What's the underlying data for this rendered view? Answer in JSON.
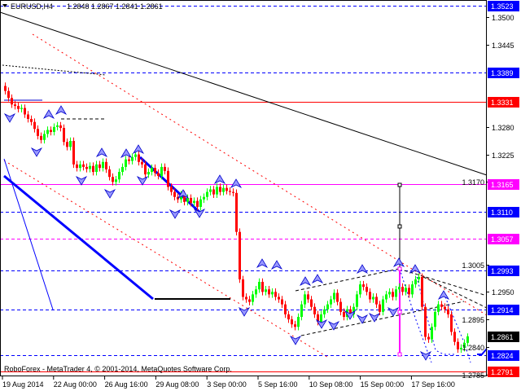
{
  "header": {
    "symbol_timeframe": "EURUSD,H4",
    "ohlc": "1.2848 1.2867 1.2841 1.2861"
  },
  "footer": {
    "copyright": "RoboForex - MetaTrader 4, © 2001-2014, MetaQuotes Software Corp."
  },
  "colors": {
    "bull": "#00ff00",
    "bear": "#ff0000",
    "blue_level": "#0000ff",
    "red_level": "#ff0000",
    "magenta_level": "#ff00ff",
    "current_price": "#000000"
  },
  "chart_data": {
    "type": "candlestick",
    "title": "EURUSD,H4",
    "timeframe": "H4",
    "ylim": [
      1.2781,
      1.3534
    ],
    "grid": false,
    "closes": [
      1.3352,
      1.3338,
      1.3325,
      1.3322,
      1.3316,
      1.3318,
      1.3305,
      1.3296,
      1.329,
      1.3276,
      1.3262,
      1.3254,
      1.3266,
      1.3274,
      1.327,
      1.328,
      1.3283,
      1.3278,
      1.325,
      1.324,
      1.3252,
      1.3205,
      1.3198,
      1.3205,
      1.32,
      1.3196,
      1.3202,
      1.319,
      1.3205,
      1.3198,
      1.321,
      1.3195,
      1.318,
      1.317,
      1.3175,
      1.319,
      1.32,
      1.3215,
      1.3212,
      1.322,
      1.3225,
      1.321,
      1.3205,
      1.3185,
      1.319,
      1.3198,
      1.3188,
      1.3182,
      1.32,
      1.3192,
      1.316,
      1.315,
      1.314,
      1.3135,
      1.3145,
      1.313,
      1.3138,
      1.3128,
      1.3132,
      1.312,
      1.3135,
      1.314,
      1.315,
      1.3155,
      1.3145,
      1.316,
      1.315,
      1.3158,
      1.3152,
      1.315,
      1.3148,
      1.307,
      1.2975,
      1.294,
      1.2935,
      1.293,
      1.2945,
      1.2955,
      1.297,
      1.295,
      1.2955,
      1.2945,
      1.295,
      1.294,
      1.2935,
      1.2925,
      1.2905,
      1.2895,
      1.2885,
      1.288,
      1.29,
      1.2925,
      1.2945,
      1.2935,
      1.292,
      1.2905,
      1.289,
      1.2905,
      1.2915,
      1.2925,
      1.2935,
      1.2948,
      1.293,
      1.291,
      1.29,
      1.2915,
      1.2905,
      1.292,
      1.2945,
      1.2965,
      1.296,
      1.295,
      1.2935,
      1.294,
      1.2925,
      1.291,
      1.2935,
      1.2945,
      1.295,
      1.294,
      1.2955,
      1.296,
      1.295,
      1.2958,
      1.2945,
      1.2965,
      1.2975,
      1.298,
      1.292,
      1.286,
      1.2855,
      1.288,
      1.291,
      1.2925,
      1.292,
      1.2915,
      1.2905,
      1.287,
      1.285,
      1.2835,
      1.2838,
      1.2848,
      1.2861
    ],
    "last_candle": {
      "open": 1.2848,
      "high": 1.2867,
      "low": 1.2841,
      "close": 1.2861
    },
    "y_ticks": [
      "1.3500",
      "1.3445",
      "1.3280",
      "1.3225",
      "1.3170",
      "1.3005",
      "1.2950",
      "1.2895",
      "1.2840",
      "1.2785"
    ],
    "x_ticks": [
      "19 Aug 2014",
      "22 Aug 00:00",
      "26 Aug 16:00",
      "29 Aug 08:00",
      "3 Sep 00:00",
      "5 Sep 16:00",
      "10 Sep 08:00",
      "15 Sep 00:00",
      "17 Sep 16:00"
    ],
    "levels": [
      {
        "price": "1.3523",
        "color": "#0000ff",
        "style": "dashed",
        "label_bg": "#0000ff"
      },
      {
        "price": "1.3389",
        "color": "#0000ff",
        "style": "dashed",
        "label_bg": "#0000ff"
      },
      {
        "price": "1.3331",
        "color": "#ff0000",
        "style": "solid",
        "label_bg": "#ff0000"
      },
      {
        "price": "1.3165",
        "color": "#ff00ff",
        "style": "solid",
        "label_bg": "#ff00ff"
      },
      {
        "price": "1.3110",
        "color": "#0000ff",
        "style": "dashed",
        "label_bg": "#0000ff"
      },
      {
        "price": "1.3057",
        "color": "#ff00ff",
        "style": "dashed",
        "label_bg": "#ff00ff"
      },
      {
        "price": "1.2993",
        "color": "#0000ff",
        "style": "dashed",
        "label_bg": "#0000ff"
      },
      {
        "price": "1.2914",
        "color": "#0000ff",
        "style": "dashed",
        "label_bg": "#0000ff"
      },
      {
        "price": "1.2861",
        "color": "none",
        "style": "none",
        "label_bg": "#000000"
      },
      {
        "price": "1.2824",
        "color": "#0000ff",
        "style": "dashed",
        "label_bg": "#0000ff"
      },
      {
        "price": "1.2791",
        "color": "#ff0000",
        "style": "solid",
        "label_bg": "#ff0000"
      }
    ]
  }
}
